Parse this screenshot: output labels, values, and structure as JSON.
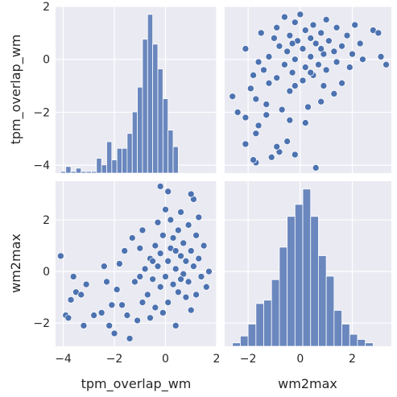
{
  "chart_data": {
    "type": "pairplot",
    "variables": [
      "tpm_overlap_wm",
      "wm2max"
    ],
    "style": {
      "panel_background": "#eaeaf2",
      "grid_color": "#ffffff",
      "mark_color": "#4c72b0",
      "bar_color": "#6a87be",
      "edge_color": "#ffffff"
    },
    "grid": true,
    "axes": {
      "tpm_overlap_wm": {
        "label": "tpm_overlap_wm",
        "range": [
          -4.3,
          2.0
        ],
        "ticks": [
          -4,
          -2,
          0,
          2
        ],
        "tick_labels": [
          "−4",
          "−2",
          "0",
          "2"
        ]
      },
      "wm2max": {
        "label": "wm2max",
        "range": [
          -2.9,
          3.5
        ],
        "ticks": [
          -2,
          0,
          2
        ],
        "tick_labels": [
          "−2",
          "0",
          "2"
        ]
      }
    },
    "histograms": [
      {
        "variable": "tpm_overlap_wm",
        "bin_start": -4.1,
        "bin_width": 0.2,
        "counts": [
          1,
          4,
          1,
          3,
          1,
          1,
          1,
          9,
          5,
          19,
          8,
          15,
          15,
          24,
          37,
          52,
          81,
          96,
          78,
          63,
          45,
          26,
          16
        ]
      },
      {
        "variable": "wm2max",
        "bin_start": -2.6,
        "bin_width": 0.3,
        "counts": [
          2,
          6,
          13,
          25,
          27,
          39,
          58,
          76,
          83,
          92,
          76,
          53,
          41,
          21,
          13,
          7,
          4,
          2
        ]
      }
    ],
    "scatter_points": [
      {
        "tpm_overlap_wm": -3.9,
        "wm2max": -1.7
      },
      {
        "tpm_overlap_wm": -3.8,
        "wm2max": -1.8
      },
      {
        "tpm_overlap_wm": -4.1,
        "wm2max": 0.6
      },
      {
        "tpm_overlap_wm": -3.6,
        "wm2max": -0.2
      },
      {
        "tpm_overlap_wm": -3.5,
        "wm2max": -0.8
      },
      {
        "tpm_overlap_wm": -3.3,
        "wm2max": -0.9
      },
      {
        "tpm_overlap_wm": -3.7,
        "wm2max": -1.1
      },
      {
        "tpm_overlap_wm": -3.2,
        "wm2max": -2.1
      },
      {
        "tpm_overlap_wm": -3.1,
        "wm2max": -0.5
      },
      {
        "tpm_overlap_wm": -2.8,
        "wm2max": -1.7
      },
      {
        "tpm_overlap_wm": -2.5,
        "wm2max": -1.6
      },
      {
        "tpm_overlap_wm": -2.3,
        "wm2max": -0.4
      },
      {
        "tpm_overlap_wm": -2.4,
        "wm2max": 0.2
      },
      {
        "tpm_overlap_wm": -2.2,
        "wm2max": -2.1
      },
      {
        "tpm_overlap_wm": -2.0,
        "wm2max": -2.4
      },
      {
        "tpm_overlap_wm": -1.9,
        "wm2max": -0.7
      },
      {
        "tpm_overlap_wm": -1.8,
        "wm2max": 0.3
      },
      {
        "tpm_overlap_wm": -1.7,
        "wm2max": -1.3
      },
      {
        "tpm_overlap_wm": -1.5,
        "wm2max": -1.7
      },
      {
        "tpm_overlap_wm": -1.4,
        "wm2max": -2.6
      },
      {
        "tpm_overlap_wm": -1.3,
        "wm2max": 1.3
      },
      {
        "tpm_overlap_wm": -1.2,
        "wm2max": -0.4
      },
      {
        "tpm_overlap_wm": -1.1,
        "wm2max": -1.9
      },
      {
        "tpm_overlap_wm": -1.0,
        "wm2max": 0.9
      },
      {
        "tpm_overlap_wm": -0.9,
        "wm2max": -1.2
      },
      {
        "tpm_overlap_wm": -0.8,
        "wm2max": 0.1
      },
      {
        "tpm_overlap_wm": -0.7,
        "wm2max": -0.9
      },
      {
        "tpm_overlap_wm": -0.6,
        "wm2max": -1.8
      },
      {
        "tpm_overlap_wm": -0.6,
        "wm2max": 0.5
      },
      {
        "tpm_overlap_wm": -0.5,
        "wm2max": -0.3
      },
      {
        "tpm_overlap_wm": -0.4,
        "wm2max": 1.0
      },
      {
        "tpm_overlap_wm": -0.4,
        "wm2max": -1.4
      },
      {
        "tpm_overlap_wm": -0.3,
        "wm2max": 0.2
      },
      {
        "tpm_overlap_wm": -0.3,
        "wm2max": 1.9
      },
      {
        "tpm_overlap_wm": -0.2,
        "wm2max": -0.6
      },
      {
        "tpm_overlap_wm": -0.2,
        "wm2max": 0.7
      },
      {
        "tpm_overlap_wm": -0.1,
        "wm2max": -1.6
      },
      {
        "tpm_overlap_wm": -0.1,
        "wm2max": 1.4
      },
      {
        "tpm_overlap_wm": 0.0,
        "wm2max": 2.4
      },
      {
        "tpm_overlap_wm": 0.0,
        "wm2max": -0.2
      },
      {
        "tpm_overlap_wm": 0.1,
        "wm2max": 0.4
      },
      {
        "tpm_overlap_wm": 0.1,
        "wm2max": -1.2
      },
      {
        "tpm_overlap_wm": 0.2,
        "wm2max": 2.0
      },
      {
        "tpm_overlap_wm": 0.2,
        "wm2max": 0.9
      },
      {
        "tpm_overlap_wm": 0.3,
        "wm2max": -0.5
      },
      {
        "tpm_overlap_wm": 0.3,
        "wm2max": 1.3
      },
      {
        "tpm_overlap_wm": 0.4,
        "wm2max": -2.1
      },
      {
        "tpm_overlap_wm": 0.4,
        "wm2max": 0.1
      },
      {
        "tpm_overlap_wm": 0.5,
        "wm2max": 1.6
      },
      {
        "tpm_overlap_wm": 0.5,
        "wm2max": -0.8
      },
      {
        "tpm_overlap_wm": 0.6,
        "wm2max": 0.6
      },
      {
        "tpm_overlap_wm": 0.6,
        "wm2max": 2.3
      },
      {
        "tpm_overlap_wm": 0.7,
        "wm2max": -0.1
      },
      {
        "tpm_overlap_wm": 0.7,
        "wm2max": 1.1
      },
      {
        "tpm_overlap_wm": 0.8,
        "wm2max": -1.0
      },
      {
        "tpm_overlap_wm": 0.8,
        "wm2max": 0.4
      },
      {
        "tpm_overlap_wm": 0.9,
        "wm2max": 1.8
      },
      {
        "tpm_overlap_wm": 0.9,
        "wm2max": -0.4
      },
      {
        "tpm_overlap_wm": 1.0,
        "wm2max": 0.8
      },
      {
        "tpm_overlap_wm": 1.0,
        "wm2max": -1.5
      },
      {
        "tpm_overlap_wm": 1.1,
        "wm2max": 2.8
      },
      {
        "tpm_overlap_wm": 1.1,
        "wm2max": 0.2
      },
      {
        "tpm_overlap_wm": 1.2,
        "wm2max": 1.4
      },
      {
        "tpm_overlap_wm": 1.2,
        "wm2max": -0.9
      },
      {
        "tpm_overlap_wm": 1.3,
        "wm2max": 0.5
      },
      {
        "tpm_overlap_wm": 1.3,
        "wm2max": 2.1
      },
      {
        "tpm_overlap_wm": 1.4,
        "wm2max": -0.2
      },
      {
        "tpm_overlap_wm": 1.5,
        "wm2max": 1.0
      },
      {
        "tpm_overlap_wm": 1.6,
        "wm2max": -0.6
      },
      {
        "tpm_overlap_wm": 1.7,
        "wm2max": 0.0
      },
      {
        "tpm_overlap_wm": -0.2,
        "wm2max": 3.3
      },
      {
        "tpm_overlap_wm": 0.1,
        "wm2max": 3.1
      },
      {
        "tpm_overlap_wm": 1.0,
        "wm2max": 3.0
      },
      {
        "tpm_overlap_wm": -0.9,
        "wm2max": 1.6
      },
      {
        "tpm_overlap_wm": -1.6,
        "wm2max": 0.8
      },
      {
        "tpm_overlap_wm": -2.1,
        "wm2max": -1.3
      },
      {
        "tpm_overlap_wm": -1.0,
        "wm2max": -0.2
      },
      {
        "tpm_overlap_wm": -0.5,
        "wm2max": 0.4
      },
      {
        "tpm_overlap_wm": 0.4,
        "wm2max": 0.8
      },
      {
        "tpm_overlap_wm": 0.6,
        "wm2max": -0.3
      }
    ]
  }
}
